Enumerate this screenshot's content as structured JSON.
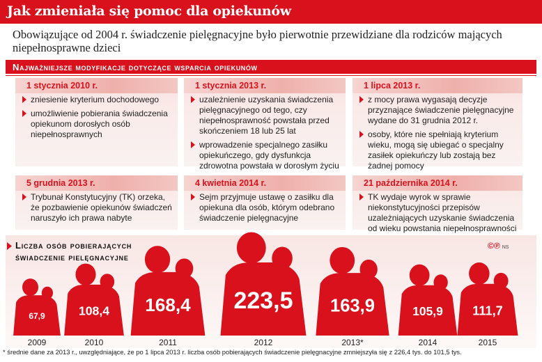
{
  "title": "Jak zmieniała się pomoc dla opiekunów",
  "subtitle": "Obowiązujące od 2004 r. świadczenie pielęgnacyjne było pierwotnie przewidziane dla rodziców mających niepełnosprawne dzieci",
  "section_heading": "Najważniejsze modyfikacje dotyczące wsparcia opiekunów",
  "cards": [
    {
      "date": "1 stycznia 2010 r.",
      "items": [
        "zniesienie kryterium dochodowego",
        "umożliwienie pobierania świadczenia opiekunom dorosłych osób niepełnosprawnych"
      ]
    },
    {
      "date": "1 stycznia 2013 r.",
      "items": [
        "uzależnienie uzyskania świadczenia pielęgnacyjnego od tego, czy niepełnosprawność powstała przed skończeniem 18 lub 25 lat",
        "wprowadzenie specjalnego zasiłku opiekuńczego, gdy dysfunkcja zdrowotna powstała w dorosłym życiu"
      ]
    },
    {
      "date": "1 lipca 2013 r.",
      "items": [
        "z mocy prawa wygasają decyzje przyznające świadczenie pielęgnacyjne wydane do 31 grudnia 2012 r.",
        "osoby, które nie spełniają kryterium wieku, mogą się ubiegać o specjalny zasiłek opiekuńczy lub zostają bez żadnej pomocy"
      ]
    },
    {
      "date": "5 grudnia 2013 r.",
      "items": [
        "Trybunał Konstytucyjny (TK) orzeka, że pozbawienie opiekunów świadczeń naruszyło ich prawa nabyte"
      ]
    },
    {
      "date": "4 kwietnia 2014 r.",
      "items": [
        "Sejm przyjmuje ustawę o zasiłku dla opiekuna dla osób, którym odebrano świadczenie pielęgnacyjne"
      ]
    },
    {
      "date": "21 października 2014 r.",
      "items": [
        "TK wydaje wyrok w sprawie niekonstytucyjności przepisów uzależniających uzyskanie świadczenia od wieku powstania niepełnosprawności"
      ]
    }
  ],
  "credit": "©℗",
  "credit_small": "NS",
  "chart_data": {
    "type": "bar",
    "title": "Liczba osób pobierających świadczenie pielęgnacyjne",
    "categories": [
      "2009",
      "2010",
      "2011",
      "2012",
      "2013*",
      "2014",
      "2015"
    ],
    "values": [
      67.9,
      108.4,
      168.4,
      223.5,
      163.9,
      105.9,
      111.7
    ],
    "value_labels": [
      "67,9",
      "108,4",
      "168,4",
      "223,5",
      "163,9",
      "105,9",
      "111,7"
    ],
    "bar_color": "#d9111d",
    "label_color": "#ffffff"
  },
  "footnote": "* średnie dane za 2013 r., uwzględniające, że po 1 lipca 2013 r. liczba osób pobierających świadczenie pielęgnacyjne zmniejszyła się z 226,4 tys. do 101,5 tys."
}
